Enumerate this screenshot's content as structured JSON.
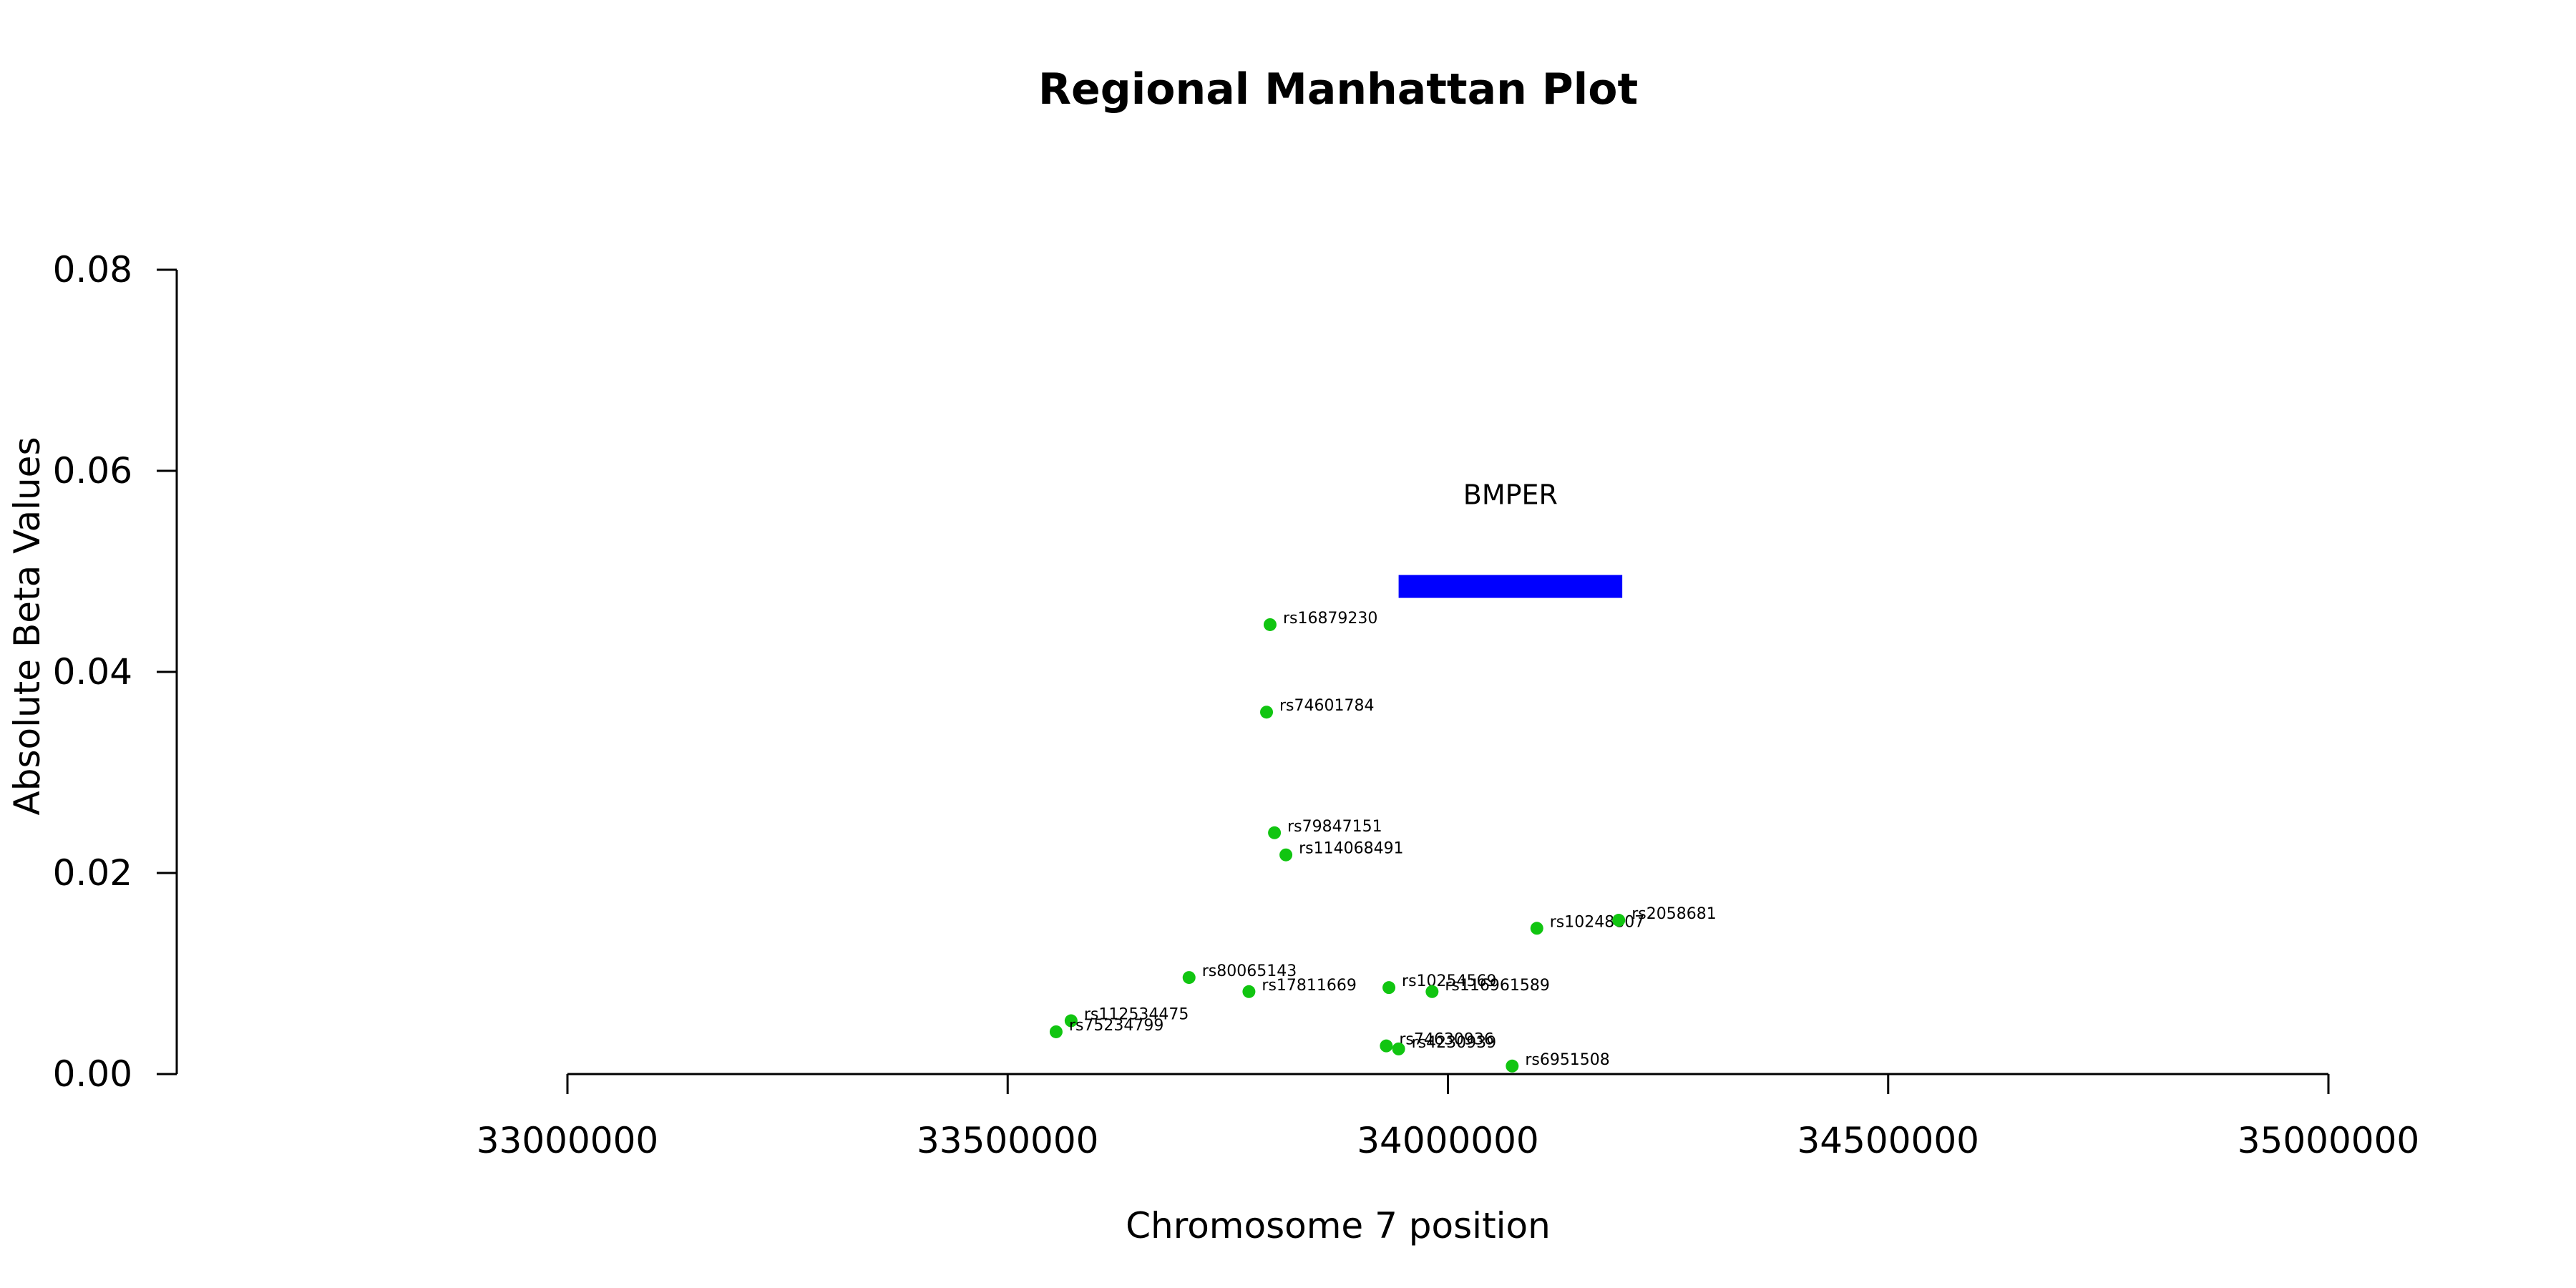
{
  "chart_data": {
    "type": "scatter",
    "title": "Regional Manhattan Plot",
    "xlabel": "Chromosome 7 position",
    "ylabel": "Absolute Beta Values",
    "xlim": [
      32550000,
      35000000
    ],
    "ylim": [
      0,
      0.08
    ],
    "x_ticks": [
      33000000,
      33500000,
      34000000,
      34500000,
      35000000
    ],
    "x_tick_labels": [
      "33000000",
      "33500000",
      "34000000",
      "34500000",
      "35000000"
    ],
    "y_ticks": [
      0,
      0.02,
      0.04,
      0.06,
      0.08
    ],
    "y_tick_labels": [
      "0.00",
      "0.02",
      "0.04",
      "0.06",
      "0.08"
    ],
    "point_color": "#11c511",
    "points": [
      {
        "label": "rs16879230",
        "x": 33798000,
        "y": 0.0447
      },
      {
        "label": "rs74601784",
        "x": 33794000,
        "y": 0.036
      },
      {
        "label": "rs79847151",
        "x": 33803000,
        "y": 0.024
      },
      {
        "label": "rs114068491",
        "x": 33816000,
        "y": 0.0218
      },
      {
        "label": "rs10248807",
        "x": 34101000,
        "y": 0.0145
      },
      {
        "label": "rs2058681",
        "x": 34194000,
        "y": 0.0153
      },
      {
        "label": "rs80065143",
        "x": 33706000,
        "y": 0.0096
      },
      {
        "label": "rs17811669",
        "x": 33774000,
        "y": 0.0082
      },
      {
        "label": "rs10254569",
        "x": 33933000,
        "y": 0.0086
      },
      {
        "label": "rs116961589",
        "x": 33982000,
        "y": 0.0082
      },
      {
        "label": "rs112534475",
        "x": 33572000,
        "y": 0.0053
      },
      {
        "label": "rs75234799",
        "x": 33555000,
        "y": 0.0042
      },
      {
        "label": "rs74630936",
        "x": 33930000,
        "y": 0.0028
      },
      {
        "label": "rs4230939",
        "x": 33944000,
        "y": 0.0025
      },
      {
        "label": "rs6951508",
        "x": 34073000,
        "y": 0.0008
      }
    ],
    "genes": [
      {
        "name": "BMPER",
        "start": 33944000,
        "end": 34198000,
        "y": 0.0485,
        "color": "#0000ff"
      }
    ]
  }
}
